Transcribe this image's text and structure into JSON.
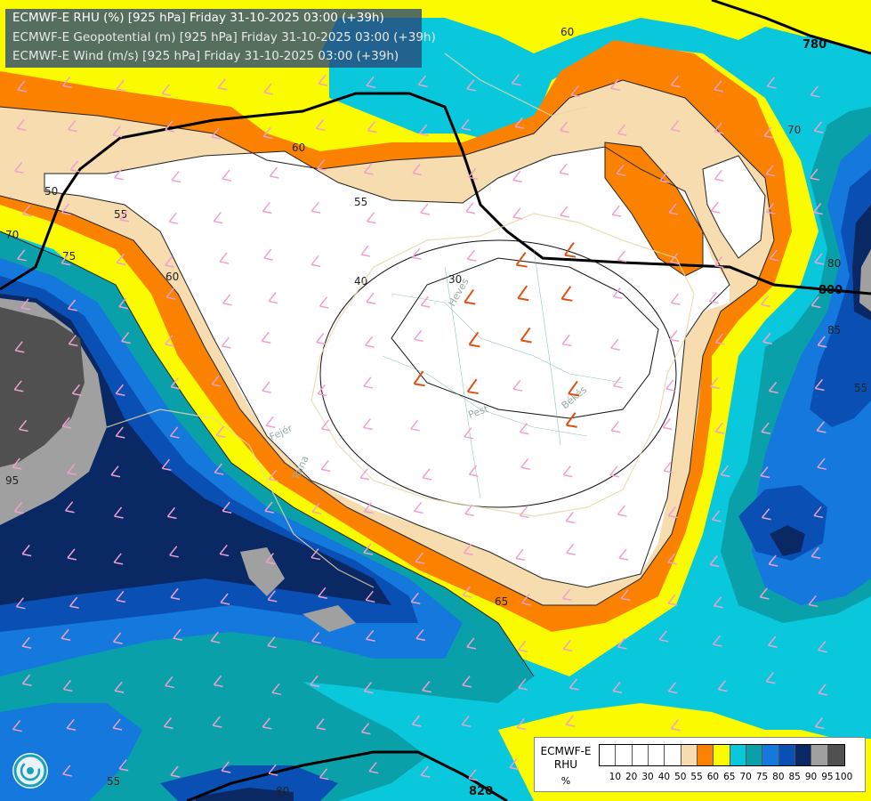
{
  "title": {
    "line1": "ECMWF-E RHU (%) [925 hPa] Friday 31-10-2025 03:00 (+39h)",
    "line2": "ECMWF-E Geopotential (m) [925 hPa] Friday 31-10-2025 03:00 (+39h)",
    "line3": "ECMWF-E Wind (m/s) [925 hPa] Friday 31-10-2025 03:00 (+39h)"
  },
  "legend": {
    "name": "ECMWF-E\nRHU",
    "unit": "%",
    "ticks": [
      "10",
      "20",
      "30",
      "40",
      "50",
      "55",
      "60",
      "65",
      "70",
      "75",
      "80",
      "85",
      "90",
      "95",
      "100"
    ],
    "colors": [
      "#ffffff",
      "#ffffff",
      "#ffffff",
      "#ffffff",
      "#ffffff",
      "#f6dcae",
      "#fa8200",
      "#fafa00",
      "#0ac8dc",
      "#0aa0aa",
      "#1478dc",
      "#0a50b4",
      "#0a2864",
      "#a0a0a0",
      "#505050"
    ]
  },
  "contour_labels": {
    "rhu": [
      "50",
      "55",
      "60",
      "55",
      "70",
      "75",
      "60",
      "40",
      "30",
      "65",
      "55",
      "70",
      "80",
      "85",
      "95",
      "55",
      "60"
    ],
    "geopotential": [
      "780",
      "800",
      "820",
      "80"
    ]
  },
  "places": [
    "Heves",
    "Pest",
    "Békés",
    "Fejér",
    "Tolna"
  ],
  "colors": {
    "white": "#ffffff",
    "tan": "#f6dcae",
    "orange": "#fa8200",
    "yellow": "#fafa00",
    "cyan": "#0ac8dc",
    "teal": "#0aa0aa",
    "blue": "#1478dc",
    "darkblue": "#0a50b4",
    "navy": "#0a2864",
    "lightgray": "#a0a0a0",
    "darkgray": "#505050",
    "wind_calm": "#f0a0d0",
    "wind_strong": "#e05010"
  }
}
